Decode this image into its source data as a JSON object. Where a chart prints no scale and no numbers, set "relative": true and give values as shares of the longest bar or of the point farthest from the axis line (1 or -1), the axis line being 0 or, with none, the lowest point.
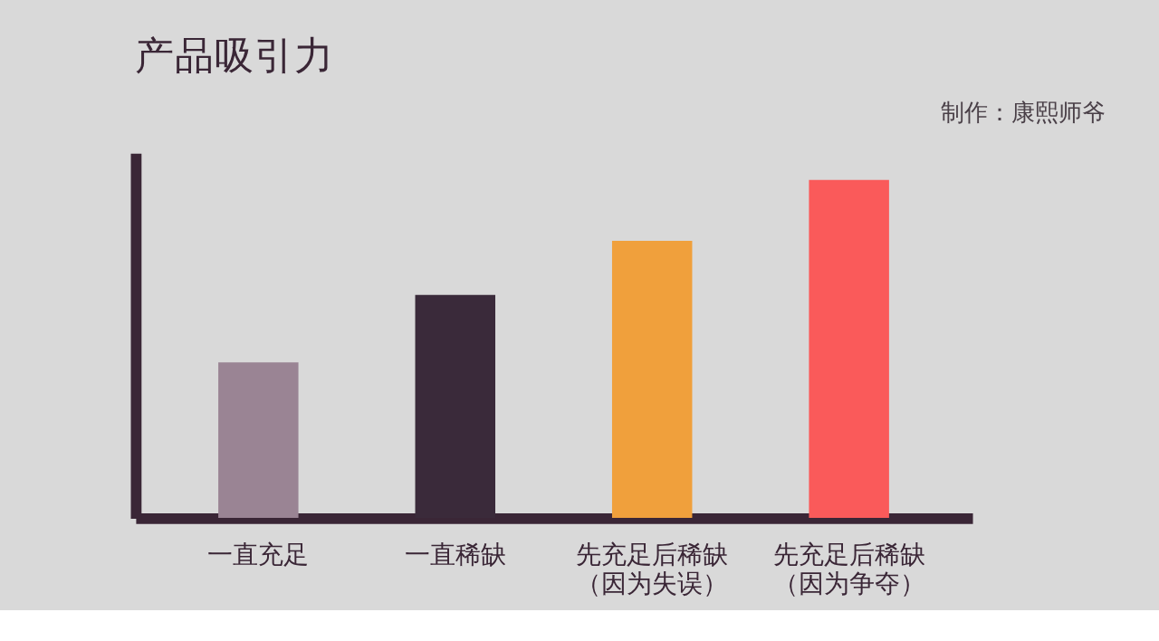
{
  "chart_data": {
    "type": "bar",
    "title": "产品吸引力",
    "relative": true,
    "categories": [
      "一直充足",
      "一直稀缺",
      "先充足后稀缺（因为失误）",
      "先充足后稀缺（因为争夺）"
    ],
    "values": [
      0.46,
      0.66,
      0.82,
      1
    ],
    "colors": [
      "#9a8494",
      "#3a2a3a",
      "#f0a03c",
      "#fa5a5a"
    ],
    "annotations": [
      "制作：康熙师爷"
    ]
  }
}
